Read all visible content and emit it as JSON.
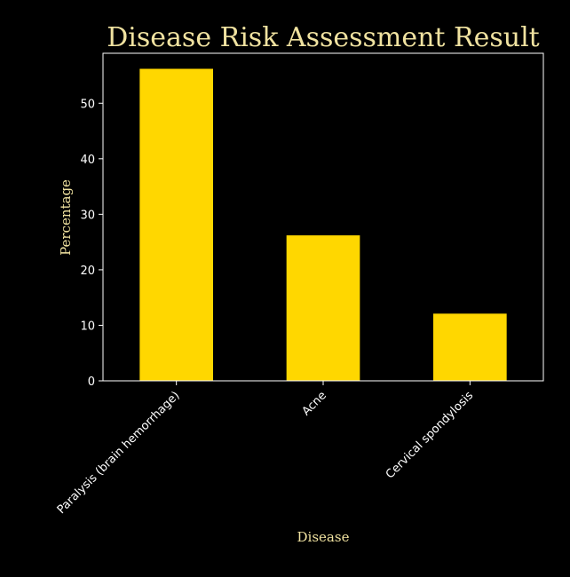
{
  "chart_data": {
    "type": "bar",
    "title": "Disease Risk Assessment Result",
    "xlabel": "Disease",
    "ylabel": "Percentage",
    "categories": [
      "Paralysis (brain hemorrhage)",
      "Acne",
      "Cervical spondylosis"
    ],
    "values": [
      56.2,
      26.2,
      12.1
    ],
    "ylim": [
      0,
      59
    ],
    "yticks": [
      "0",
      "10",
      "20",
      "30",
      "40",
      "50"
    ],
    "xtick_rotation": 45,
    "grid": false,
    "legend": "none",
    "colors": {
      "background": "#000000",
      "bar": "#ffd700",
      "axes": "#ffffff",
      "title": "#f0e2a0",
      "axis_label": "#f0e2a0",
      "tick_label": "#ffffff"
    }
  }
}
